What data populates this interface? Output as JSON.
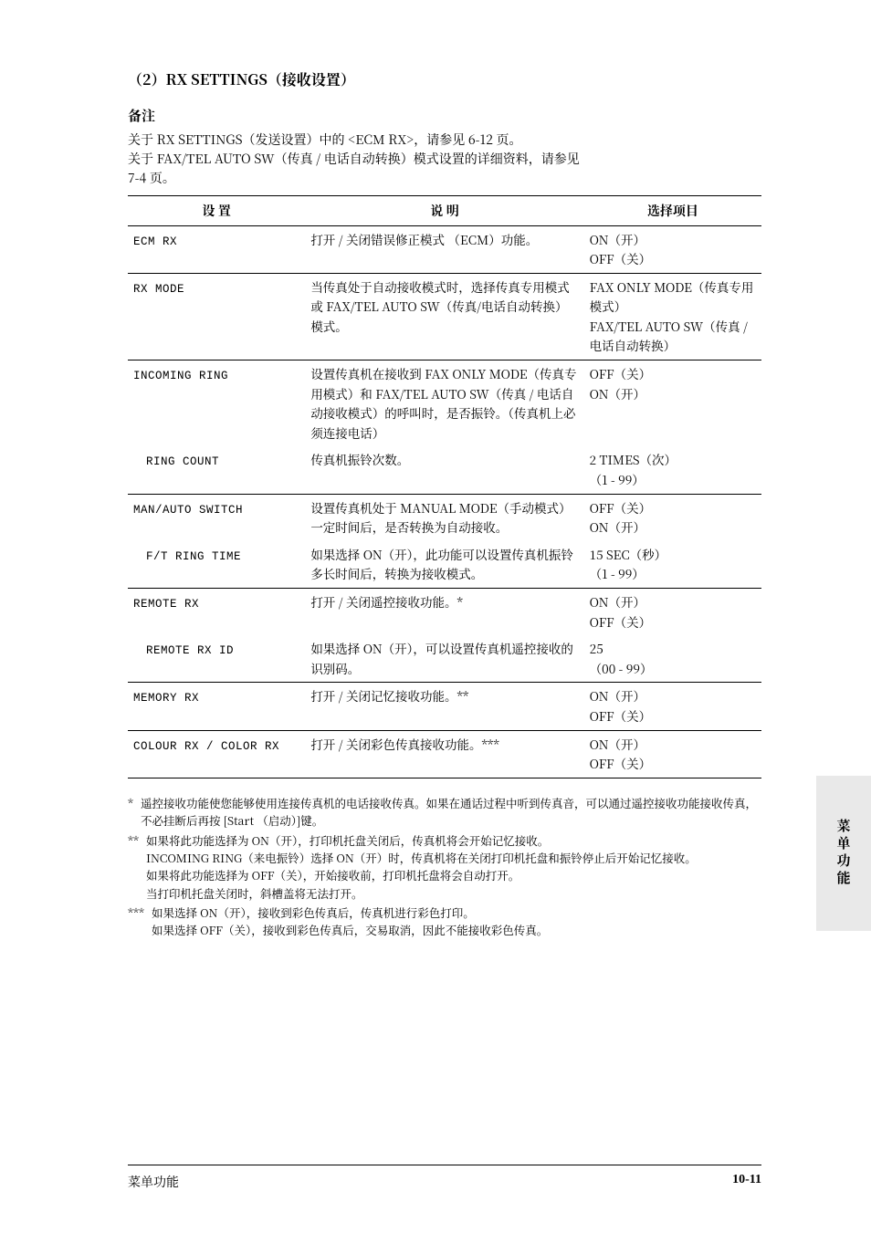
{
  "page": {
    "title": "（2）RX SETTINGS（接收设置）",
    "footer_text": "菜单功能",
    "footer_page": "10-11"
  },
  "note": {
    "lead": "备注",
    "ecm_line": "关于 RX SETTINGS（发送设置）中的 <ECM RX>，请参见 6-12 页。",
    "fax_line1": "关于 FAX/TEL AUTO SW（传真 / 电话自动转换）模式设置的详细资料，请参见",
    "fax_line2": "7-4 页。"
  },
  "table": {
    "headers": {
      "setting": "设  置",
      "desc": "说  明",
      "sel": "选择项目"
    },
    "rows": [
      {
        "sep": true,
        "setting": "ECM RX",
        "desc": "打开 / 关闭错误修正模式 （ECM）功能。",
        "sel_lines": [
          "ON（开）",
          "OFF（关）"
        ]
      },
      {
        "sep": true,
        "setting": "RX MODE",
        "desc": "当传真处于自动接收模式时，选择传真专用模式或 FAX/TEL AUTO SW（传真/电话自动转换）模式。",
        "sel_lines": [
          "FAX ONLY MODE（传真专用模式）",
          "FAX/TEL AUTO SW（传真 / 电话自动转换）"
        ]
      },
      {
        "sep": true,
        "setting": "INCOMING RING",
        "desc": "设置传真机在接收到 FAX ONLY MODE（传真专用模式）和 FAX/TEL AUTO SW（传真 / 电话自动接收模式）的呼叫时，是否振铃。（传真机上必须连接电话）",
        "sel_lines": [
          "OFF（关）",
          "ON（开）"
        ]
      },
      {
        "sep": false,
        "setting": "  RING COUNT",
        "indent": true,
        "desc": "传真机振铃次数。",
        "sel_lines": [
          "2 TIMES（次）",
          "（1 - 99）"
        ]
      },
      {
        "sep": true,
        "setting": "MAN/AUTO SWITCH",
        "desc": "设置传真机处于 MANUAL MODE（手动模式）一定时间后，是否转换为自动接收。",
        "sel_lines": [
          "OFF（关）",
          "ON（开）"
        ]
      },
      {
        "sep": false,
        "setting": "  F/T RING TIME",
        "indent": true,
        "desc": "如果选择 ON（开），此功能可以设置传真机振铃多长时间后，转换为接收模式。",
        "sel_lines": [
          "15 SEC（秒）",
          "（1 - 99）"
        ]
      },
      {
        "sep": true,
        "setting": "REMOTE RX",
        "desc": "打开 / 关闭遥控接收功能。*",
        "sel_lines": [
          "ON（开）",
          "OFF（关）"
        ]
      },
      {
        "sep": false,
        "setting": "  REMOTE RX ID",
        "indent": true,
        "desc": "如果选择 ON（开），可以设置传真机遥控接收的识别码。",
        "sel_lines": [
          "25",
          "（00 - 99）"
        ]
      },
      {
        "sep": true,
        "setting": "MEMORY RX",
        "desc": "打开 / 关闭记忆接收功能。**",
        "sel_lines": [
          "ON（开）",
          "OFF（关）"
        ]
      },
      {
        "sep": true,
        "setting": "COLOUR RX / COLOR RX",
        "desc": "打开 / 关闭彩色传真接收功能。***",
        "sel_lines": [
          "ON（开）",
          "OFF（关）"
        ]
      }
    ]
  },
  "footnotes": {
    "f1_marker": "*",
    "f1_text": "遥控接收功能使您能够使用连接传真机的电话接收传真。如果在通话过程中听到传真音，可以通过遥控接收功能接收传真，不必挂断后再按 [Start （启动）]键。",
    "f2_marker": "**",
    "f2_l1": "如果将此功能选择为 ON（开），打印机托盘关闭后，传真机将会开始记忆接收。",
    "f2_l2": "INCOMING RING（来电振铃）选择 ON（开）时，传真机将在关闭打印机托盘和振铃停止后开始记忆接收。",
    "f2_l3": "如果将此功能选择为 OFF（关），开始接收前，打印机托盘将会自动打开。",
    "f2_l4": "当打印机托盘关闭时，斜槽盖将无法打开。",
    "f3_marker": "***",
    "f3_l1": "如果选择 ON（开），接收到彩色传真后，传真机进行彩色打印。",
    "f3_l2": "如果选择 OFF（关），接收到彩色传真后，交易取消，因此不能接收彩色传真。"
  },
  "sidetab": "菜单功能"
}
